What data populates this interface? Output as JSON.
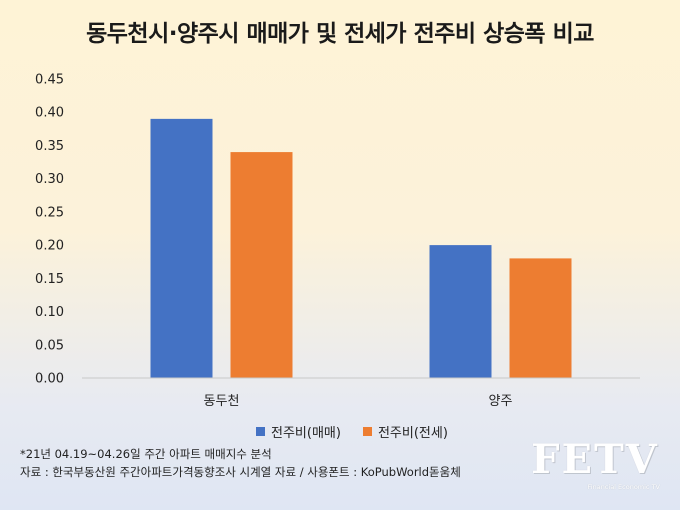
{
  "chart_data": {
    "type": "bar",
    "title": "동두천시·양주시 매매가 및 전세가 전주비 상승폭 비교",
    "categories": [
      "동두천",
      "양주"
    ],
    "series": [
      {
        "name": "전주비(매매)",
        "values": [
          0.39,
          0.2
        ],
        "color": "#4472c4"
      },
      {
        "name": "전주비(전세)",
        "values": [
          0.34,
          0.18
        ],
        "color": "#ed7d31"
      }
    ],
    "ylim": [
      0,
      0.45
    ],
    "yticks": [
      "0.00",
      "0.05",
      "0.10",
      "0.15",
      "0.20",
      "0.25",
      "0.30",
      "0.35",
      "0.40",
      "0.45"
    ],
    "xlabel": "",
    "ylabel": "",
    "grid": false,
    "legend_position": "bottom"
  },
  "footnotes": {
    "line1": "*21년 04.19~04.26일 주간 아파트 매매지수 분석",
    "line2": "자료 : 한국부동산원 주간아파트가격동향조사 시계열 자료 / 사용폰트 : KoPubWorld돋움체"
  },
  "logo": {
    "text": "FETV",
    "subtitle": "Financial Economic TV"
  }
}
